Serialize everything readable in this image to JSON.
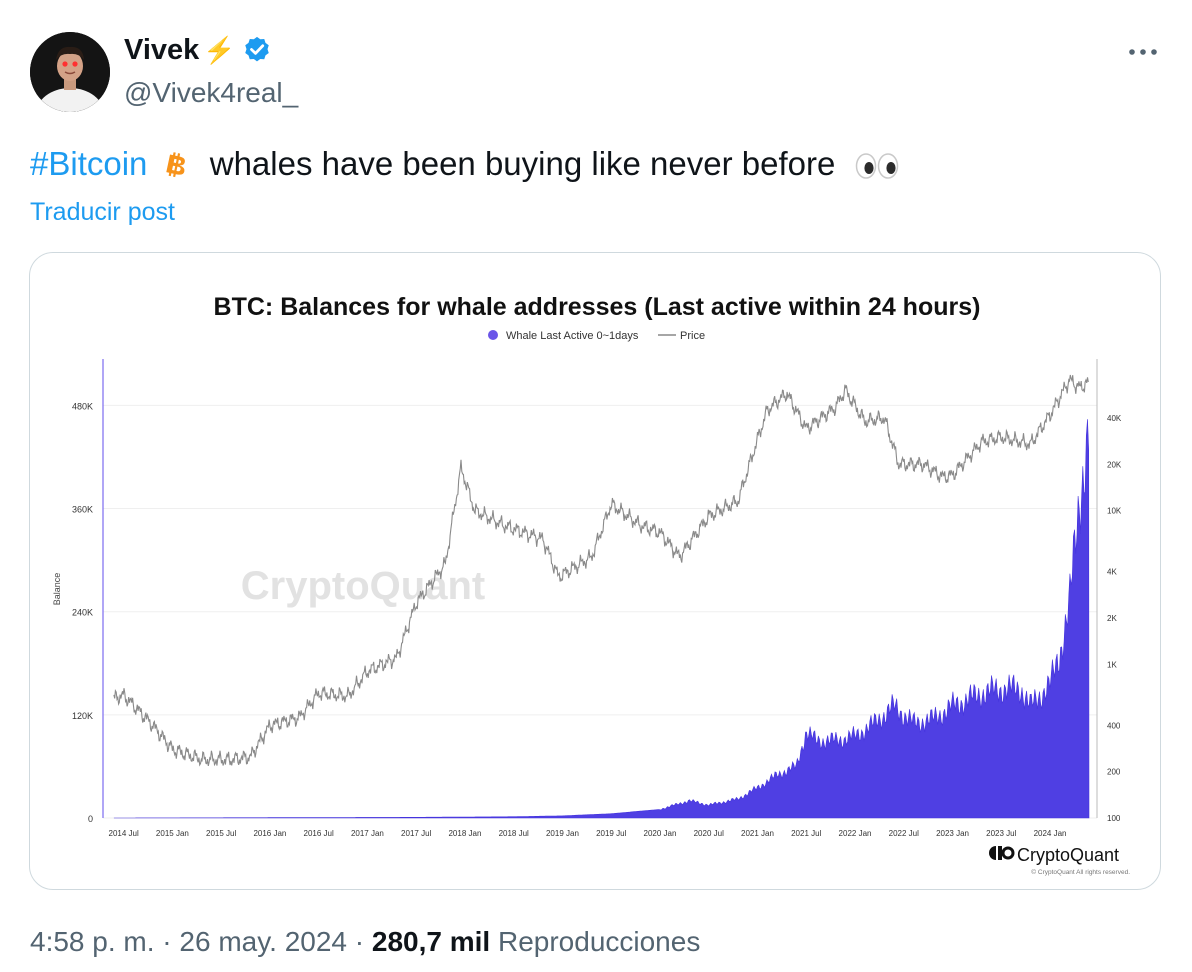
{
  "user": {
    "display_name": "Vivek",
    "name_emoji": "⚡",
    "handle": "@Vivek4real_"
  },
  "tweet": {
    "hashtag": "#Bitcoin",
    "text": "whales have been buying like never before",
    "translate_label": "Traducir post"
  },
  "meta": {
    "time": "4:58 p. m.",
    "date": "26 may. 2024",
    "views_count": "280,7 mil",
    "views_label": "Reproducciones",
    "separator": "·"
  },
  "colors": {
    "link": "#1d9bf0",
    "muted": "#536471",
    "whale_series": "#4f3fe3",
    "price_line": "#8a8a8a",
    "bitcoin": "#f7931a"
  },
  "icons": {
    "verified": "verified-badge-icon",
    "bitcoin": "bitcoin-icon",
    "eyes": "eyes-icon",
    "more": "more-dots-icon"
  },
  "chart_data": {
    "type": "area",
    "title": "BTC: Balances for whale addresses (Last active within 24 hours)",
    "ylabel": "Balance",
    "watermark": "CryptoQuant",
    "brand": "CryptoQuant",
    "copyright": "© CryptoQuant All rights reserved.",
    "legend": [
      "Whale Last Active 0~1days",
      "Price"
    ],
    "legend_placement": "top-center",
    "grid": true,
    "x_ticks": [
      "2014 Jul",
      "2015 Jan",
      "2015 Jul",
      "2016 Jan",
      "2016 Jul",
      "2017 Jan",
      "2017 Jul",
      "2018 Jan",
      "2018 Jul",
      "2019 Jan",
      "2019 Jul",
      "2020 Jan",
      "2020 Jul",
      "2021 Jan",
      "2021 Jul",
      "2022 Jan",
      "2022 Jul",
      "2023 Jan",
      "2023 Jul",
      "2024 Jan"
    ],
    "y_left_ticks": [
      "0",
      "120K",
      "240K",
      "360K",
      "480K"
    ],
    "y_left_range": [
      0,
      520000
    ],
    "y_right_ticks": [
      "100",
      "200",
      "400",
      "1K",
      "2K",
      "4K",
      "10K",
      "20K",
      "40K"
    ],
    "y_right_scale": "log",
    "series": [
      {
        "name": "Whale Last Active 0~1days",
        "x": [
          2014.4,
          2017.5,
          2018.5,
          2019.0,
          2019.5,
          2020.0,
          2020.3,
          2020.5,
          2020.8,
          2021.0,
          2021.2,
          2021.4,
          2021.5,
          2021.6,
          2021.8,
          2022.0,
          2022.2,
          2022.4,
          2022.6,
          2022.8,
          2023.0,
          2023.3,
          2023.5,
          2023.7,
          2023.8,
          2024.0,
          2024.1,
          2024.2,
          2024.3,
          2024.4
        ],
        "values": [
          0,
          800,
          1500,
          2500,
          5000,
          10000,
          20000,
          15000,
          22000,
          35000,
          50000,
          60000,
          100000,
          90000,
          90000,
          95000,
          110000,
          130000,
          110000,
          115000,
          130000,
          145000,
          150000,
          150000,
          130000,
          155000,
          190000,
          250000,
          370000,
          445000
        ]
      },
      {
        "name": "Price",
        "x": [
          2014.4,
          2014.5,
          2014.8,
          2015.0,
          2015.3,
          2015.6,
          2015.8,
          2016.0,
          2016.3,
          2016.5,
          2016.8,
          2017.0,
          2017.3,
          2017.5,
          2017.8,
          2017.96,
          2018.1,
          2018.4,
          2018.8,
          2018.96,
          2019.3,
          2019.5,
          2019.8,
          2020.0,
          2020.2,
          2020.5,
          2020.8,
          2021.0,
          2021.1,
          2021.3,
          2021.5,
          2021.8,
          2021.9,
          2022.1,
          2022.3,
          2022.45,
          2022.7,
          2022.9,
          2023.0,
          2023.3,
          2023.5,
          2023.8,
          2024.0,
          2024.2,
          2024.3,
          2024.4
        ],
        "values": [
          600,
          630,
          400,
          280,
          240,
          240,
          250,
          400,
          450,
          650,
          620,
          900,
          1100,
          2500,
          4500,
          19000,
          10000,
          8000,
          6500,
          3700,
          5000,
          11000,
          8000,
          7200,
          5000,
          9200,
          11500,
          29000,
          45000,
          58000,
          34000,
          47000,
          61000,
          38000,
          40000,
          20000,
          20000,
          16500,
          17000,
          28000,
          30000,
          27000,
          42000,
          71000,
          63000,
          68000
        ]
      }
    ]
  }
}
